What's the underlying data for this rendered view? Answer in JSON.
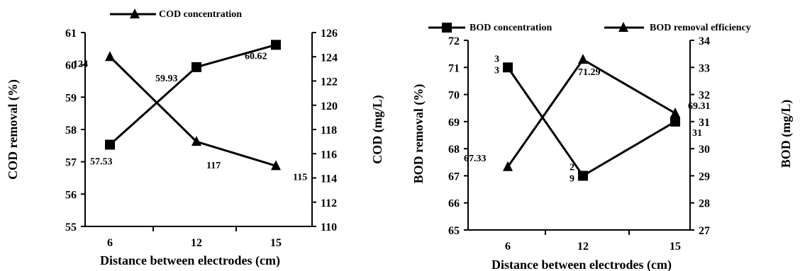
{
  "chart_data": [
    {
      "type": "line",
      "categories": [
        "6",
        "12",
        "15"
      ],
      "xlabel": "Distance between electrodes (cm)",
      "ylabel": "COD removal (%)",
      "y2label": "COD (mg/L)",
      "ylim": [
        55,
        61
      ],
      "y2lim": [
        110,
        126
      ],
      "yticks": [
        "55",
        "56",
        "57",
        "58",
        "59",
        "60",
        "61"
      ],
      "y2ticks": [
        "110",
        "112",
        "114",
        "116",
        "118",
        "120",
        "122",
        "124",
        "126"
      ],
      "legend": "top",
      "grid": false,
      "series": [
        {
          "name": "",
          "axis": "left",
          "marker": "square",
          "values": [
            57.53,
            59.93,
            60.62
          ],
          "labels": [
            "57.53",
            "59.93",
            "60.62"
          ]
        },
        {
          "name": "COD concentration",
          "axis": "right",
          "marker": "triangle",
          "values": [
            124,
            117,
            115
          ],
          "labels": [
            "124",
            "117",
            "115"
          ]
        }
      ]
    },
    {
      "type": "line",
      "categories": [
        "6",
        "12",
        "15"
      ],
      "xlabel": "Distance between electrodes (cm)",
      "ylabel": "BOD removal (%)",
      "y2label": "BOD (mg/L)",
      "ylim": [
        65,
        72
      ],
      "y2lim": [
        27,
        34
      ],
      "yticks": [
        "65",
        "66",
        "67",
        "68",
        "69",
        "70",
        "71",
        "72"
      ],
      "y2ticks": [
        "27",
        "28",
        "29",
        "30",
        "31",
        "32",
        "33",
        "34"
      ],
      "legend": "top",
      "grid": false,
      "series": [
        {
          "name": "BOD concentration",
          "axis": "right",
          "marker": "square",
          "values": [
            33,
            29,
            31
          ],
          "labels": [
            "3\n3",
            "2\n9",
            "31"
          ]
        },
        {
          "name": "BOD removal efficiency",
          "axis": "left",
          "marker": "triangle",
          "values": [
            67.33,
            71.29,
            69.31
          ],
          "labels": [
            "67.33",
            "71.29",
            "69.31"
          ]
        }
      ]
    }
  ]
}
